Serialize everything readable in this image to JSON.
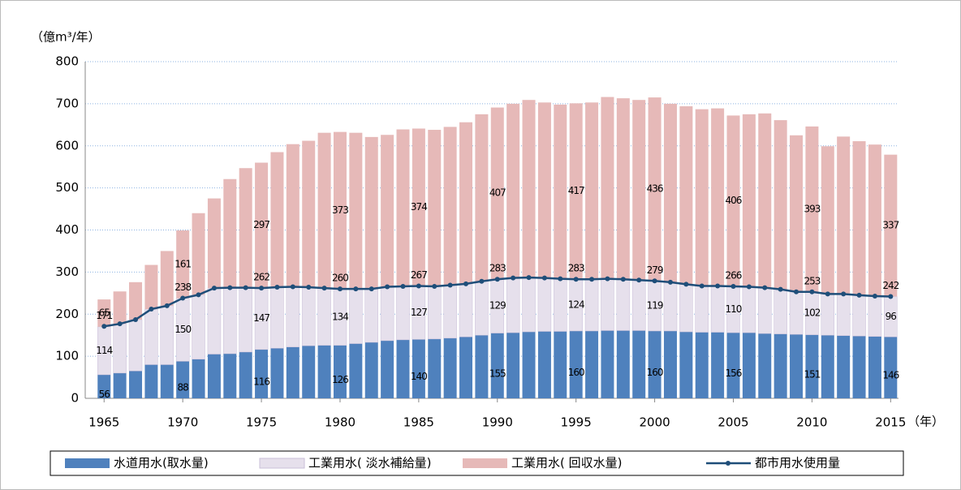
{
  "chart_data": {
    "type": "bar",
    "stacked": true,
    "y_label": "（億m³/年）",
    "x_label": "（年）",
    "x": [
      1965,
      1966,
      1967,
      1968,
      1969,
      1970,
      1971,
      1972,
      1973,
      1974,
      1975,
      1976,
      1977,
      1978,
      1979,
      1980,
      1981,
      1982,
      1983,
      1984,
      1985,
      1986,
      1987,
      1988,
      1989,
      1990,
      1991,
      1992,
      1993,
      1994,
      1995,
      1996,
      1997,
      1998,
      1999,
      2000,
      2001,
      2002,
      2003,
      2004,
      2005,
      2006,
      2007,
      2008,
      2009,
      2010,
      2011,
      2012,
      2013,
      2014,
      2015
    ],
    "xlim": [
      1963.8,
      2015.5
    ],
    "xticks": [
      1965,
      1970,
      1975,
      1980,
      1985,
      1990,
      1995,
      2000,
      2005,
      2010,
      2015
    ],
    "ylim": [
      0,
      800
    ],
    "yticks": [
      0,
      100,
      200,
      300,
      400,
      500,
      600,
      700,
      800
    ],
    "grid": true,
    "legend": "bottom",
    "series": [
      {
        "name": "水道用水(取水量)",
        "type": "bar",
        "color": "#4f81bd",
        "values": [
          56,
          60,
          65,
          80,
          80,
          88,
          93,
          105,
          106,
          110,
          116,
          119,
          122,
          125,
          126,
          126,
          130,
          133,
          137,
          139,
          140,
          141,
          143,
          146,
          150,
          155,
          156,
          158,
          159,
          159,
          160,
          160,
          161,
          161,
          161,
          160,
          160,
          158,
          157,
          157,
          156,
          156,
          154,
          153,
          152,
          151,
          150,
          149,
          148,
          147,
          146
        ]
      },
      {
        "name": "工業用水( 淡水補給量)",
        "type": "bar",
        "color": "#e6e0ec",
        "values": [
          114,
          117,
          122,
          132,
          140,
          150,
          153,
          157,
          157,
          153,
          147,
          145,
          143,
          139,
          136,
          134,
          130,
          127,
          128,
          127,
          127,
          125,
          126,
          126,
          128,
          129,
          130,
          129,
          127,
          125,
          124,
          123,
          123,
          122,
          120,
          119,
          116,
          113,
          110,
          110,
          110,
          109,
          109,
          106,
          101,
          102,
          98,
          99,
          97,
          96,
          96
        ]
      },
      {
        "name": "工業用水( 回収水量)",
        "type": "bar",
        "color": "#e6b9b8",
        "values": [
          65,
          77,
          89,
          105,
          130,
          161,
          194,
          213,
          258,
          284,
          297,
          321,
          339,
          348,
          369,
          373,
          371,
          361,
          361,
          373,
          374,
          372,
          376,
          384,
          397,
          407,
          414,
          422,
          417,
          414,
          417,
          420,
          432,
          430,
          428,
          436,
          424,
          423,
          420,
          422,
          406,
          410,
          414,
          402,
          372,
          393,
          351,
          374,
          366,
          360,
          337
        ]
      },
      {
        "name": "都市用水使用量",
        "type": "line",
        "color": "#1f4e79",
        "values": [
          171,
          177,
          187,
          212,
          220,
          238,
          246,
          262,
          263,
          263,
          262,
          264,
          265,
          264,
          262,
          260,
          260,
          260,
          265,
          266,
          267,
          266,
          269,
          272,
          278,
          283,
          286,
          287,
          286,
          284,
          283,
          283,
          284,
          283,
          281,
          279,
          276,
          271,
          267,
          267,
          266,
          265,
          263,
          259,
          253,
          253,
          248,
          248,
          245,
          243,
          242
        ]
      }
    ]
  }
}
